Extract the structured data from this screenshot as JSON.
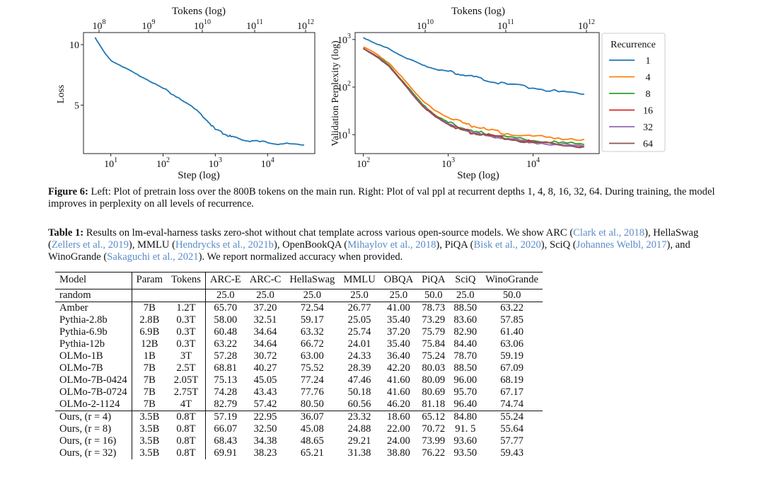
{
  "figure": {
    "left_panel": {
      "top_axis_label": "Tokens (log)",
      "top_ticks": [
        {
          "base": "10",
          "exp": "8"
        },
        {
          "base": "10",
          "exp": "9"
        },
        {
          "base": "10",
          "exp": "10"
        },
        {
          "base": "10",
          "exp": "11"
        },
        {
          "base": "10",
          "exp": "12"
        }
      ],
      "bottom_ticks": [
        {
          "base": "10",
          "exp": "1"
        },
        {
          "base": "10",
          "exp": "2"
        },
        {
          "base": "10",
          "exp": "3"
        },
        {
          "base": "10",
          "exp": "4"
        }
      ],
      "y_ticks": [
        "10",
        "5"
      ],
      "xlabel": "Step (log)",
      "ylabel": "Loss"
    },
    "right_panel": {
      "top_axis_label": "Tokens (log)",
      "top_ticks": [
        {
          "base": "10",
          "exp": "10"
        },
        {
          "base": "10",
          "exp": "11"
        },
        {
          "base": "10",
          "exp": "12"
        }
      ],
      "bottom_ticks": [
        {
          "base": "10",
          "exp": "2"
        },
        {
          "base": "10",
          "exp": "3"
        },
        {
          "base": "10",
          "exp": "4"
        }
      ],
      "y_ticks": [
        {
          "base": "10",
          "exp": "3"
        },
        {
          "base": "10",
          "exp": "2"
        },
        {
          "base": "10",
          "exp": "1"
        }
      ],
      "xlabel": "Step (log)",
      "ylabel": "Validation Perplexity (log)",
      "legend_title": "Recurrence",
      "legend": [
        {
          "label": "1",
          "color": "#1f77b4"
        },
        {
          "label": "4",
          "color": "#ff7f0e"
        },
        {
          "label": "8",
          "color": "#2ca02c"
        },
        {
          "label": "16",
          "color": "#d62728"
        },
        {
          "label": "32",
          "color": "#9467bd"
        },
        {
          "label": "64",
          "color": "#8c564b"
        }
      ]
    }
  },
  "chart_data": [
    {
      "type": "line",
      "title": "",
      "xlabel": "Step (log)",
      "ylabel": "Loss",
      "x_scale": "log",
      "xlim": [
        3,
        80000
      ],
      "ylim": [
        1,
        11
      ],
      "grid": false,
      "series": [
        {
          "name": "Loss",
          "color": "#1f77b4",
          "x": [
            5,
            8,
            10,
            15,
            30,
            50,
            100,
            200,
            400,
            700,
            1000,
            1500,
            2000,
            3000,
            5000,
            10000,
            20000,
            50000
          ],
          "y": [
            10.6,
            9.2,
            8.7,
            8.3,
            7.6,
            7.1,
            6.4,
            5.6,
            4.7,
            3.7,
            3.0,
            2.6,
            2.4,
            2.2,
            2.05,
            1.9,
            1.8,
            1.7
          ]
        }
      ]
    },
    {
      "type": "line",
      "title": "",
      "xlabel": "Step (log)",
      "ylabel": "Validation Perplexity (log)",
      "x_scale": "log",
      "y_scale": "log",
      "xlim": [
        80,
        60000
      ],
      "ylim": [
        4,
        1400
      ],
      "grid": false,
      "legend_title": "Recurrence",
      "legend_position": "right",
      "series": [
        {
          "name": "1",
          "color": "#1f77b4",
          "x": [
            100,
            150,
            200,
            300,
            500,
            700,
            1000,
            1500,
            2000,
            3000,
            5000,
            10000,
            20000,
            40000
          ],
          "y": [
            1100,
            780,
            640,
            430,
            290,
            240,
            215,
            180,
            165,
            130,
            115,
            95,
            80,
            70
          ]
        },
        {
          "name": "4",
          "color": "#ff7f0e",
          "x": [
            100,
            150,
            200,
            300,
            500,
            700,
            1000,
            1500,
            2000,
            3000,
            5000,
            10000,
            20000,
            40000
          ],
          "y": [
            700,
            470,
            320,
            145,
            52,
            32,
            23,
            17.5,
            15,
            12.5,
            10.5,
            9.3,
            8.5,
            8
          ]
        },
        {
          "name": "8",
          "color": "#2ca02c",
          "x": [
            100,
            150,
            200,
            300,
            500,
            700,
            1000,
            1500,
            2000,
            3000,
            5000,
            10000,
            20000,
            40000
          ],
          "y": [
            660,
            430,
            290,
            125,
            43,
            26,
            18,
            13.5,
            11.5,
            10.5,
            9,
            7.5,
            6.7,
            6.2
          ]
        },
        {
          "name": "16",
          "color": "#d62728",
          "x": [
            100,
            150,
            200,
            300,
            500,
            700,
            1000,
            1500,
            2000,
            3000,
            5000,
            10000,
            20000,
            40000
          ],
          "y": [
            650,
            420,
            280,
            120,
            41,
            25,
            17,
            12.8,
            11,
            9.8,
            8.3,
            7,
            6.3,
            5.8
          ]
        },
        {
          "name": "32",
          "color": "#9467bd",
          "x": [
            100,
            150,
            200,
            300,
            500,
            700,
            1000,
            1500,
            2000,
            3000,
            5000,
            10000,
            20000,
            40000
          ],
          "y": [
            645,
            415,
            278,
            118,
            40,
            24.5,
            16.8,
            12.6,
            10.8,
            9.6,
            8.1,
            6.9,
            6.2,
            5.7
          ]
        },
        {
          "name": "64",
          "color": "#8c564b",
          "x": [
            100,
            150,
            200,
            300,
            500,
            700,
            1000,
            1500,
            2000,
            3000,
            5000,
            10000,
            20000,
            40000
          ],
          "y": [
            640,
            410,
            275,
            117,
            39.5,
            24,
            16.5,
            12.4,
            10.6,
            9.4,
            8,
            6.8,
            6.1,
            5.6
          ]
        }
      ]
    }
  ],
  "figure_caption": {
    "label": "Figure 6:",
    "text": " Left: Plot of pretrain loss over the 800B tokens on the main run. Right: Plot of val ppl at recurrent depths 1, 4, 8, 16, 32, 64. During training, the model improves in perplexity on all levels of recurrence."
  },
  "table_caption": {
    "label": "Table 1:",
    "t1": " Results on lm-eval-harness tasks zero-shot without chat template across various open-source models. We show ARC (",
    "c1": "Clark et al., 2018",
    "t2": "), HellaSwag (",
    "c2": "Zellers et al., 2019",
    "t3": "), MMLU (",
    "c3": "Hendrycks et al., 2021b",
    "t4": "), OpenBookQA (",
    "c4": "Mihaylov et al., 2018",
    "t5": "), PiQA (",
    "c5": "Bisk et al., 2020",
    "t6": "), SciQ (",
    "c6": "Johannes Welbl, 2017",
    "t7": "), and WinoGrande (",
    "c7": "Sakaguchi et al., 2021",
    "t8": "). We report normalized accuracy when provided."
  },
  "table": {
    "headers": [
      "Model",
      "Param",
      "Tokens",
      "ARC-E",
      "ARC-C",
      "HellaSwag",
      "MMLU",
      "OBQA",
      "PiQA",
      "SciQ",
      "WinoGrande"
    ],
    "random": [
      "random",
      "",
      "",
      "25.0",
      "25.0",
      "25.0",
      "25.0",
      "25.0",
      "50.0",
      "25.0",
      "50.0"
    ],
    "baselines": [
      [
        "Amber",
        "7B",
        "1.2T",
        "65.70",
        "37.20",
        "72.54",
        "26.77",
        "41.00",
        "78.73",
        "88.50",
        "63.22"
      ],
      [
        "Pythia-2.8b",
        "2.8B",
        "0.3T",
        "58.00",
        "32.51",
        "59.17",
        "25.05",
        "35.40",
        "73.29",
        "83.60",
        "57.85"
      ],
      [
        "Pythia-6.9b",
        "6.9B",
        "0.3T",
        "60.48",
        "34.64",
        "63.32",
        "25.74",
        "37.20",
        "75.79",
        "82.90",
        "61.40"
      ],
      [
        "Pythia-12b",
        "12B",
        "0.3T",
        "63.22",
        "34.64",
        "66.72",
        "24.01",
        "35.40",
        "75.84",
        "84.40",
        "63.06"
      ],
      [
        "OLMo-1B",
        "1B",
        "3T",
        "57.28",
        "30.72",
        "63.00",
        "24.33",
        "36.40",
        "75.24",
        "78.70",
        "59.19"
      ],
      [
        "OLMo-7B",
        "7B",
        "2.5T",
        "68.81",
        "40.27",
        "75.52",
        "28.39",
        "42.20",
        "80.03",
        "88.50",
        "67.09"
      ],
      [
        "OLMo-7B-0424",
        "7B",
        "2.05T",
        "75.13",
        "45.05",
        "77.24",
        "47.46",
        "41.60",
        "80.09",
        "96.00",
        "68.19"
      ],
      [
        "OLMo-7B-0724",
        "7B",
        "2.75T",
        "74.28",
        "43.43",
        "77.76",
        "50.18",
        "41.60",
        "80.69",
        "95.70",
        "67.17"
      ],
      [
        "OLMo-2-1124",
        "7B",
        "4T",
        "82.79",
        "57.42",
        "80.50",
        "60.56",
        "46.20",
        "81.18",
        "96.40",
        "74.74"
      ]
    ],
    "ours": [
      [
        "Ours, (r = 4)",
        "3.5B",
        "0.8T",
        "57.19",
        "22.95",
        "36.07",
        "23.32",
        "18.60",
        "65.12",
        "84.80",
        "55.24"
      ],
      [
        "Ours, (r = 8)",
        "3.5B",
        "0.8T",
        "66.07",
        "32.50",
        "45.08",
        "24.88",
        "22.00",
        "70.72",
        "91. 5",
        "55.64"
      ],
      [
        "Ours, (r = 16)",
        "3.5B",
        "0.8T",
        "68.43",
        "34.38",
        "48.65",
        "29.21",
        "24.00",
        "73.99",
        "93.60",
        "57.77"
      ],
      [
        "Ours, (r = 32)",
        "3.5B",
        "0.8T",
        "69.91",
        "38.23",
        "65.21",
        "31.38",
        "38.80",
        "76.22",
        "93.50",
        "59.43"
      ]
    ]
  }
}
